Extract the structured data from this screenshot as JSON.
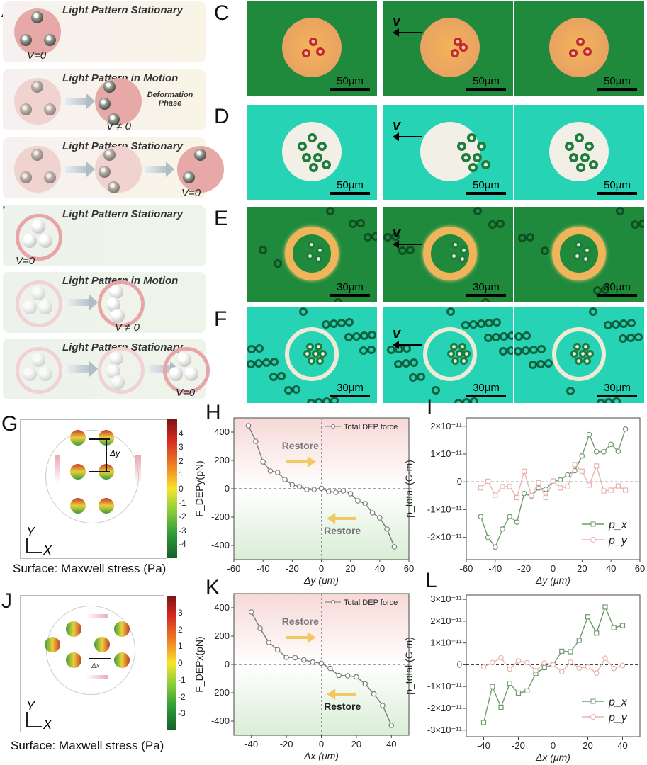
{
  "panels": {
    "A": {
      "letter": "A",
      "rows": [
        {
          "title": "Light Pattern Stationary",
          "v": "V=0"
        },
        {
          "title": "Light Pattern in Motion",
          "v": "V ≠ 0",
          "note": "Deformation Phase"
        },
        {
          "title": "Light Pattern Stationary",
          "v": "V=0"
        }
      ]
    },
    "B": {
      "letter": "B",
      "rows": [
        {
          "title": "Light Pattern Stationary",
          "v": "V=0"
        },
        {
          "title": "Light Pattern in Motion",
          "v": "V ≠ 0"
        },
        {
          "title": "Light Pattern Stationary",
          "v": "V=0"
        }
      ]
    },
    "C": {
      "letter": "C",
      "scale": "50μm",
      "v": "v"
    },
    "D": {
      "letter": "D",
      "scale": "50μm",
      "v": "v"
    },
    "E": {
      "letter": "E",
      "scale": "30μm",
      "v": "v"
    },
    "F": {
      "letter": "F",
      "scale": "30μm",
      "v": "v"
    },
    "G": {
      "letter": "G",
      "caption": "Surface: Maxwell stress (Pa)",
      "delta": "Δy",
      "axis_y": "Y",
      "axis_x": "X",
      "colorbar_ticks": [
        "4",
        "3",
        "2",
        "1",
        "0",
        "-1",
        "-2",
        "-3",
        "-4"
      ]
    },
    "J": {
      "letter": "J",
      "caption": "Surface: Maxwell stress (Pa)",
      "delta": "Δx",
      "axis_y": "Y",
      "axis_x": "X",
      "colorbar_ticks": [
        "3",
        "2",
        "1",
        "0",
        "-1",
        "-2",
        "-3"
      ]
    },
    "H": {
      "letter": "H"
    },
    "I": {
      "letter": "I"
    },
    "K": {
      "letter": "K"
    },
    "L": {
      "letter": "L"
    }
  },
  "colors": {
    "px": "#6f9a6a",
    "py": "#e9b3b0",
    "force": "#7a7a7a",
    "restore_arrow": "#f2c04a"
  },
  "chart_data": [
    {
      "id": "H",
      "type": "line",
      "ylabel": "F_DEPy(pN)",
      "xlabel": "Δy (μm)",
      "xlim": [
        -60,
        60
      ],
      "ylim": [
        -500,
        500
      ],
      "xticks": [
        "-60",
        "-40",
        "-20",
        "0",
        "20",
        "40",
        "60"
      ],
      "xtick_values": [
        -60,
        -40,
        -20,
        0,
        20,
        40,
        60
      ],
      "yticks": [
        "-400",
        "-200",
        "0",
        "200",
        "400"
      ],
      "ytick_values": [
        -400,
        -200,
        0,
        200,
        400
      ],
      "legend": "top-right",
      "annotations": [
        "Restore",
        "Restore"
      ],
      "series": [
        {
          "name": "Total DEP force",
          "marker": "circle",
          "x": [
            -50,
            -45,
            -40,
            -35,
            -30,
            -25,
            -20,
            -15,
            -10,
            -5,
            0,
            5,
            10,
            15,
            20,
            25,
            30,
            35,
            40,
            45,
            50
          ],
          "y": [
            445,
            335,
            190,
            125,
            115,
            65,
            28,
            15,
            -5,
            -5,
            3,
            -20,
            -25,
            -15,
            -35,
            -85,
            -105,
            -170,
            -205,
            -285,
            -410
          ]
        }
      ]
    },
    {
      "id": "I",
      "type": "line",
      "ylabel": "p_total (C·m)",
      "xlabel": "Δy (μm)",
      "xlim": [
        -60,
        60
      ],
      "ylim": [
        -2.8e-11,
        2.3e-11
      ],
      "xticks": [
        "-60",
        "-40",
        "-20",
        "0",
        "20",
        "40",
        "60"
      ],
      "xtick_values": [
        -60,
        -40,
        -20,
        0,
        20,
        40,
        60
      ],
      "yticks": [
        "-2×10⁻¹¹",
        "-1×10⁻¹¹",
        "0",
        "1×10⁻¹¹",
        "2×10⁻¹¹"
      ],
      "ytick_values": [
        -2e-11,
        -1e-11,
        0,
        1e-11,
        2e-11
      ],
      "legend": "bottom-right",
      "series": [
        {
          "name": "p_x",
          "marker": "circle",
          "x": [
            -50,
            -45,
            -40,
            -35,
            -30,
            -25,
            -20,
            -15,
            -10,
            -5,
            0,
            5,
            10,
            15,
            20,
            25,
            30,
            35,
            40,
            45,
            50
          ],
          "y": [
            -1.25e-11,
            -2e-11,
            -2.35e-11,
            -1.7e-11,
            -1.25e-11,
            -1.45e-11,
            -4.2e-12,
            -5.2e-12,
            -2.2e-12,
            -2.7e-12,
            3e-13,
            7e-13,
            2.5e-12,
            4e-12,
            9.3e-12,
            1.7e-11,
            1.08e-11,
            1.08e-11,
            1.35e-11,
            1.1e-11,
            1.9e-11
          ]
        },
        {
          "name": "p_y",
          "marker": "square",
          "x": [
            -50,
            -45,
            -40,
            -35,
            -30,
            -25,
            -20,
            -15,
            -10,
            -5,
            0,
            5,
            10,
            15,
            20,
            25,
            30,
            35,
            40,
            45,
            50
          ],
          "y": [
            -2.2e-12,
            2e-13,
            -4.8e-12,
            -1.7e-12,
            -1.7e-12,
            -5.7e-12,
            3.8e-12,
            -5e-12,
            -3e-13,
            -5.7e-12,
            3e-13,
            -2.2e-12,
            -1.8e-12,
            6.2e-12,
            3.8e-12,
            -1.2e-12,
            5.7e-12,
            -3.3e-12,
            -3e-12,
            -1.5e-12,
            -3e-12
          ]
        }
      ]
    },
    {
      "id": "K",
      "type": "line",
      "ylabel": "F_DEPx(pN)",
      "xlabel": "Δx (μm)",
      "xlim": [
        -50,
        50
      ],
      "ylim": [
        -500,
        500
      ],
      "xticks": [
        "-40",
        "-20",
        "0",
        "20",
        "40"
      ],
      "xtick_values": [
        -40,
        -20,
        0,
        20,
        40
      ],
      "yticks": [
        "-400",
        "-200",
        "0",
        "200",
        "400"
      ],
      "ytick_values": [
        -400,
        -200,
        0,
        200,
        400
      ],
      "legend": "top-right",
      "annotations": [
        "Restore",
        "Restore"
      ],
      "series": [
        {
          "name": "Total DEP force",
          "marker": "circle",
          "x": [
            -40,
            -35,
            -30,
            -25,
            -20,
            -15,
            -10,
            -5,
            0,
            5,
            10,
            15,
            20,
            25,
            30,
            35,
            40
          ],
          "y": [
            370,
            255,
            155,
            103,
            50,
            48,
            32,
            17,
            8,
            -28,
            -78,
            -80,
            -88,
            -137,
            -208,
            -290,
            -430
          ]
        }
      ]
    },
    {
      "id": "L",
      "type": "line",
      "ylabel": "p_total (C·m)",
      "xlabel": "Δx (μm)",
      "xlim": [
        -50,
        50
      ],
      "ylim": [
        -3.3e-11,
        3.2e-11
      ],
      "xticks": [
        "-40",
        "-20",
        "0",
        "20",
        "40"
      ],
      "xtick_values": [
        -40,
        -20,
        0,
        20,
        40
      ],
      "yticks": [
        "-3×10⁻¹¹",
        "-2×10⁻¹¹",
        "-1×10⁻¹¹",
        "0",
        "1×10⁻¹¹",
        "2×10⁻¹¹",
        "3×10⁻¹¹"
      ],
      "ytick_values": [
        -3e-11,
        -2e-11,
        -1e-11,
        0,
        1e-11,
        2e-11,
        3e-11
      ],
      "legend": "bottom-right",
      "series": [
        {
          "name": "p_x",
          "marker": "square",
          "x": [
            -40,
            -35,
            -30,
            -25,
            -20,
            -15,
            -10,
            -5,
            0,
            5,
            10,
            15,
            20,
            25,
            30,
            35,
            40
          ],
          "y": [
            -2.65e-11,
            -1e-11,
            -1.95e-11,
            -8.5e-12,
            -1.3e-11,
            -1.2e-11,
            -4e-12,
            -1.3e-12,
            0,
            6.2e-12,
            6e-12,
            1.12e-11,
            2.2e-11,
            1.45e-11,
            2.65e-11,
            1.7e-11,
            1.8e-11
          ]
        },
        {
          "name": "p_y",
          "marker": "circle",
          "x": [
            -40,
            -35,
            -30,
            -25,
            -20,
            -15,
            -10,
            -5,
            0,
            5,
            10,
            15,
            20,
            25,
            30,
            35,
            40
          ],
          "y": [
            -1e-12,
            1e-12,
            3.2e-12,
            -2e-12,
            1.8e-12,
            1e-12,
            -2.7e-12,
            8e-13,
            0,
            -3.2e-12,
            1.2e-12,
            -1.5e-12,
            -1e-12,
            -3.8e-12,
            3e-12,
            -1.7e-12,
            -3e-13
          ]
        }
      ]
    }
  ]
}
